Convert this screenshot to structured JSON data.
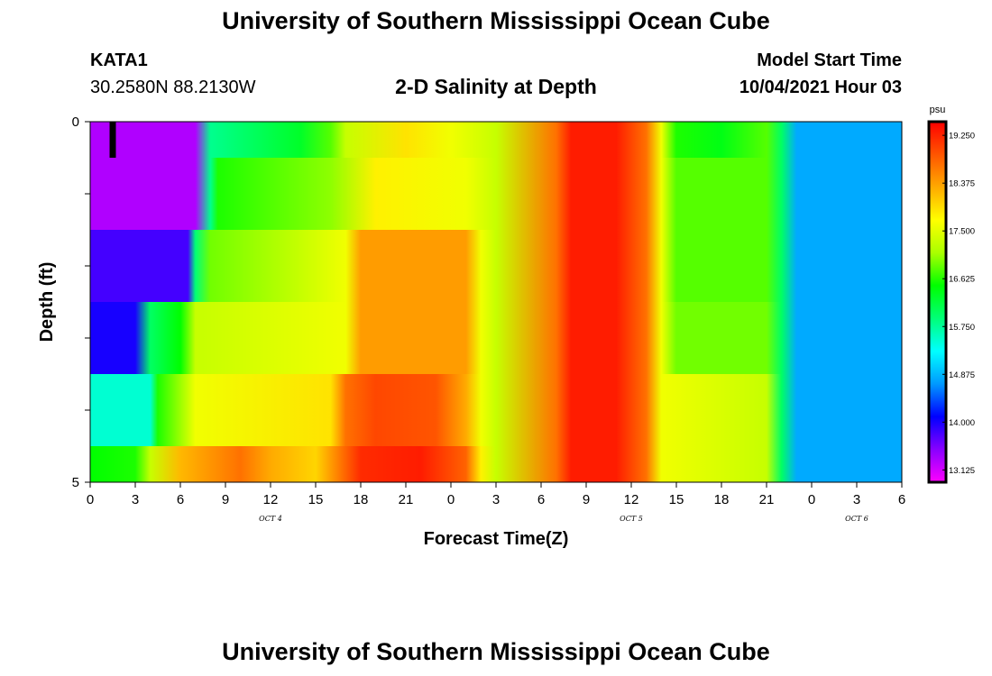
{
  "header": {
    "title": "University of Southern Mississippi Ocean Cube",
    "station_id": "KATA1",
    "station_coords": "30.2580N  88.2130W",
    "subtitle": "2-D Salinity at Depth",
    "model_start_label": "Model Start Time",
    "model_start_value": "10/04/2021 Hour 03"
  },
  "footer": {
    "title": "University of Southern Mississippi Ocean Cube"
  },
  "chart_data": {
    "type": "heatmap",
    "title": "2-D Salinity at Depth",
    "xlabel": "Forecast Time(Z)",
    "ylabel": "Depth (ft)",
    "x_tick_labels": [
      "0",
      "3",
      "6",
      "9",
      "12",
      "15",
      "18",
      "21",
      "0",
      "3",
      "6",
      "9",
      "12",
      "15",
      "18",
      "21",
      "0",
      "3",
      "6"
    ],
    "x_range_hours": [
      0,
      54
    ],
    "date_labels": [
      {
        "label": "OCT 4",
        "hour": 12
      },
      {
        "label": "OCT 5",
        "hour": 36
      },
      {
        "label": "OCT 6",
        "hour": 51
      }
    ],
    "y_tick_labels": [
      "0",
      "5"
    ],
    "y_range_ft": [
      0,
      5
    ],
    "depth_levels": 5,
    "colorbar": {
      "unit": "psu",
      "min": 12.9,
      "max": 19.5,
      "ticks": [
        "19.250",
        "18.375",
        "17.500",
        "16.625",
        "15.750",
        "14.875",
        "14.000",
        "13.125"
      ]
    },
    "colormap": [
      "#ff00ff",
      "#8800ff",
      "#0000ff",
      "#0099ff",
      "#00ffff",
      "#00ff77",
      "#00ff00",
      "#aaff00",
      "#ffff00",
      "#ffaa00",
      "#ff5500",
      "#ff0000"
    ],
    "marker": {
      "hour": 1.5,
      "depth_ft": [
        0,
        0.5
      ]
    },
    "rows": [
      {
        "depth_ft": [
          0.0,
          0.5
        ],
        "stops": [
          [
            0,
            13.3
          ],
          [
            7,
            13.3
          ],
          [
            8,
            15.8
          ],
          [
            14,
            16.3
          ],
          [
            16,
            16.8
          ],
          [
            17,
            17.3
          ],
          [
            21,
            17.9
          ],
          [
            24,
            17.6
          ],
          [
            27,
            17.3
          ],
          [
            31,
            18.7
          ],
          [
            32,
            19.3
          ],
          [
            35,
            19.3
          ],
          [
            37,
            18.7
          ],
          [
            38,
            17.6
          ],
          [
            39,
            16.6
          ],
          [
            42,
            16.4
          ],
          [
            45,
            16.8
          ],
          [
            46,
            16.0
          ],
          [
            47,
            14.8
          ],
          [
            54,
            14.8
          ]
        ]
      },
      {
        "depth_ft": [
          0.5,
          1.5
        ],
        "stops": [
          [
            0,
            13.3
          ],
          [
            7,
            13.3
          ],
          [
            8,
            15.8
          ],
          [
            8.5,
            16.6
          ],
          [
            16,
            17.0
          ],
          [
            19,
            17.8
          ],
          [
            25,
            17.6
          ],
          [
            27,
            17.3
          ],
          [
            31,
            18.7
          ],
          [
            32,
            19.3
          ],
          [
            35,
            19.3
          ],
          [
            37,
            18.7
          ],
          [
            38,
            17.6
          ],
          [
            39,
            16.8
          ],
          [
            45,
            16.8
          ],
          [
            46,
            16.0
          ],
          [
            47,
            14.8
          ],
          [
            54,
            14.8
          ]
        ]
      },
      {
        "depth_ft": [
          1.5,
          2.5
        ],
        "stops": [
          [
            0,
            13.8
          ],
          [
            6.5,
            13.8
          ],
          [
            7,
            15.9
          ],
          [
            8,
            16.9
          ],
          [
            17,
            17.6
          ],
          [
            18,
            18.4
          ],
          [
            25,
            18.4
          ],
          [
            26,
            17.6
          ],
          [
            27,
            17.3
          ],
          [
            31,
            18.7
          ],
          [
            32,
            19.3
          ],
          [
            35,
            19.3
          ],
          [
            37,
            18.7
          ],
          [
            38,
            17.6
          ],
          [
            39,
            16.8
          ],
          [
            45,
            16.8
          ],
          [
            46,
            16.0
          ],
          [
            47,
            14.8
          ],
          [
            54,
            14.8
          ]
        ]
      },
      {
        "depth_ft": [
          2.5,
          3.5
        ],
        "stops": [
          [
            0,
            14.0
          ],
          [
            3,
            14.0
          ],
          [
            4,
            16.0
          ],
          [
            6,
            16.5
          ],
          [
            7,
            17.3
          ],
          [
            17,
            17.6
          ],
          [
            18,
            18.4
          ],
          [
            25,
            18.4
          ],
          [
            26,
            17.6
          ],
          [
            27,
            17.3
          ],
          [
            31,
            18.7
          ],
          [
            32,
            19.3
          ],
          [
            35,
            19.3
          ],
          [
            37,
            18.7
          ],
          [
            38,
            17.6
          ],
          [
            39,
            16.9
          ],
          [
            45,
            16.9
          ],
          [
            46,
            16.0
          ],
          [
            47,
            14.8
          ],
          [
            54,
            14.8
          ]
        ]
      },
      {
        "depth_ft": [
          3.5,
          5.0
        ],
        "stops": [
          [
            0,
            15.5
          ],
          [
            4,
            15.5
          ],
          [
            4.5,
            16.6
          ],
          [
            7,
            17.6
          ],
          [
            16,
            17.9
          ],
          [
            17,
            18.7
          ],
          [
            19,
            19.0
          ],
          [
            23,
            18.9
          ],
          [
            25,
            18.3
          ],
          [
            26,
            17.6
          ],
          [
            27,
            17.3
          ],
          [
            31,
            18.7
          ],
          [
            32,
            19.3
          ],
          [
            35,
            19.3
          ],
          [
            37,
            18.7
          ],
          [
            38,
            17.6
          ],
          [
            45,
            17.3
          ],
          [
            46,
            16.0
          ],
          [
            47,
            14.8
          ],
          [
            54,
            14.8
          ]
        ]
      },
      {
        "depth_ft": [
          4.5,
          5.0
        ],
        "stops": [
          [
            0,
            16.5
          ],
          [
            3,
            16.6
          ],
          [
            4,
            17.3
          ],
          [
            6,
            18.2
          ],
          [
            10,
            18.7
          ],
          [
            12,
            18.3
          ],
          [
            15,
            18.0
          ],
          [
            17,
            18.8
          ],
          [
            18,
            19.2
          ],
          [
            22,
            19.3
          ],
          [
            25,
            18.8
          ],
          [
            26,
            17.8
          ],
          [
            27,
            17.3
          ],
          [
            31,
            18.7
          ],
          [
            32,
            19.3
          ],
          [
            35,
            19.3
          ],
          [
            37,
            18.7
          ],
          [
            38,
            17.6
          ],
          [
            45,
            17.3
          ],
          [
            46,
            16.0
          ],
          [
            47,
            14.8
          ],
          [
            54,
            14.8
          ]
        ]
      }
    ]
  }
}
